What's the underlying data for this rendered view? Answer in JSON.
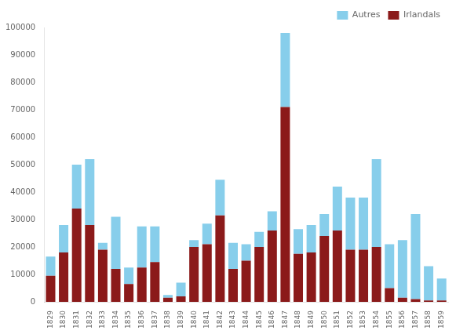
{
  "chart_data": {
    "type": "bar",
    "stacked": true,
    "categories": [
      "1829",
      "1830",
      "1831",
      "1832",
      "1833",
      "1834",
      "1835",
      "1836",
      "1837",
      "1838",
      "1839",
      "1840",
      "1841",
      "1842",
      "1843",
      "1844",
      "1845",
      "1846",
      "1847",
      "1848",
      "1849",
      "1850",
      "1851",
      "1852",
      "1853",
      "1854",
      "1855",
      "1856",
      "1857",
      "1858",
      "1859"
    ],
    "series": [
      {
        "name": "Irlandals",
        "color": "#8B1A1A",
        "values": [
          9500,
          18000,
          34000,
          28000,
          19000,
          12000,
          6500,
          12500,
          14500,
          1500,
          2000,
          20000,
          21000,
          31500,
          12000,
          15000,
          20000,
          26000,
          71000,
          17500,
          18000,
          24000,
          26000,
          19000,
          19000,
          20000,
          5000,
          1500,
          1000,
          500,
          500
        ]
      },
      {
        "name": "Autres",
        "color": "#87CEEB",
        "values": [
          7000,
          10000,
          16000,
          24000,
          2500,
          19000,
          6000,
          15000,
          13000,
          1000,
          5000,
          2500,
          7500,
          13000,
          9500,
          6000,
          5500,
          7000,
          27000,
          9000,
          10000,
          8000,
          16000,
          19000,
          19000,
          32000,
          16000,
          21000,
          31000,
          12500,
          8000
        ]
      }
    ],
    "ylim": [
      0,
      100000
    ],
    "yticks": [
      0,
      10000,
      20000,
      30000,
      40000,
      50000,
      60000,
      70000,
      80000,
      90000,
      100000
    ],
    "grid": false,
    "legend": "upper right"
  }
}
